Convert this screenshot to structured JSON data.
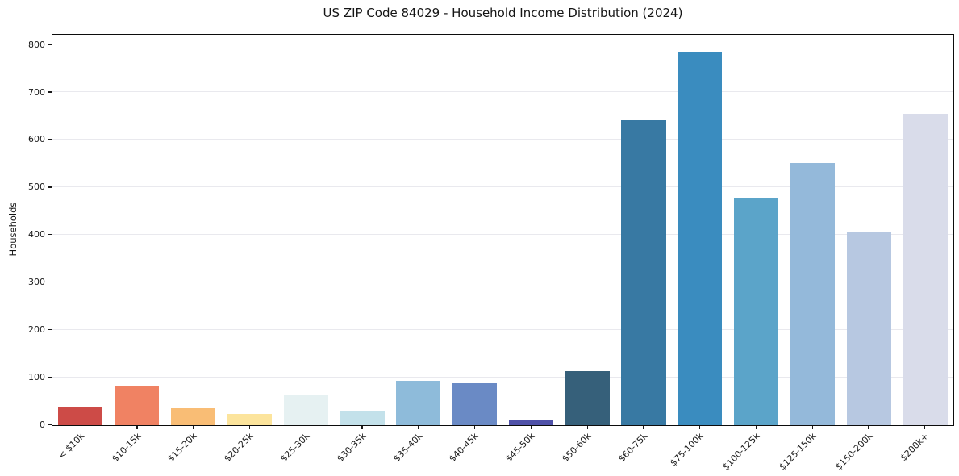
{
  "title": "US ZIP Code 84029 - Household Income Distribution (2024)",
  "chart_data": {
    "type": "bar",
    "title": "US ZIP Code 84029 - Household Income Distribution (2024)",
    "xlabel": "",
    "ylabel": "Households",
    "categories": [
      "< $10k",
      "$10-15k",
      "$15-20k",
      "$20-25k",
      "$25-30k",
      "$30-35k",
      "$35-40k",
      "$40-45k",
      "$45-50k",
      "$50-60k",
      "$60-75k",
      "$75-100k",
      "$100-125k",
      "$125-150k",
      "$150-200k",
      "$200k+"
    ],
    "values": [
      38,
      81,
      36,
      23,
      62,
      30,
      93,
      88,
      12,
      113,
      641,
      783,
      478,
      552,
      405,
      655
    ],
    "bar_colors": [
      "#cd4b47",
      "#f08263",
      "#f9bd75",
      "#fce49c",
      "#e6f1f2",
      "#c3e1ea",
      "#8ebbda",
      "#6a8ac5",
      "#4f51a8",
      "#36607a",
      "#3879a3",
      "#3a8cbf",
      "#5ba4c9",
      "#94b9da",
      "#b7c8e1",
      "#d9dcea"
    ],
    "yticks": [
      0,
      100,
      200,
      300,
      400,
      500,
      600,
      700,
      800
    ],
    "ylim": [
      0,
      820
    ],
    "grid": "horizontal",
    "legend": "none",
    "background": "#ffffff",
    "gridline_color": "#e9e9ee",
    "spine_color": "#0c0c0c"
  }
}
